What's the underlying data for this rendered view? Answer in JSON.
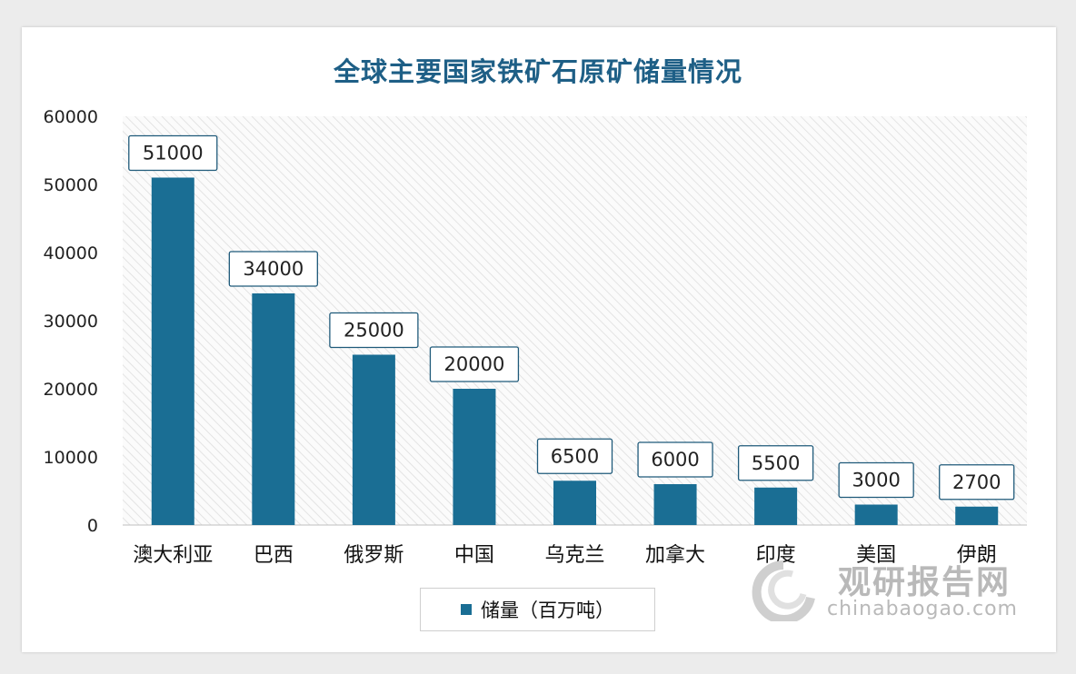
{
  "chart_data": {
    "type": "bar",
    "title": "全球主要国家铁矿石原矿储量情况",
    "categories": [
      "澳大利亚",
      "巴西",
      "俄罗斯",
      "中国",
      "乌克兰",
      "加拿大",
      "印度",
      "美国",
      "伊朗"
    ],
    "series": [
      {
        "name": "储量（百万吨）",
        "values": [
          51000,
          34000,
          25000,
          20000,
          6500,
          6000,
          5500,
          3000,
          2700
        ]
      }
    ],
    "ylim": [
      0,
      60000
    ],
    "yticks": [
      0,
      10000,
      20000,
      30000,
      40000,
      50000,
      60000
    ],
    "legend_position": "bottom",
    "grid": false,
    "bar_color": "#1a6e94"
  },
  "watermark": {
    "cn": "观研报告网",
    "en": "chinabaogao.com"
  }
}
